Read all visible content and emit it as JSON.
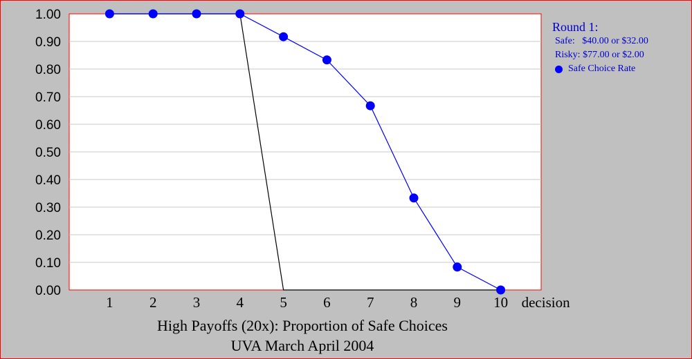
{
  "colors": {
    "background": "#c0c0c0",
    "plot_area": "#ffffff",
    "plot_border": "#ff0000",
    "series": "#0000ff",
    "reference_line": "#000000",
    "legend_text": "#0000cc"
  },
  "chart_data": {
    "type": "line",
    "title": "High Payoffs (20x): Proportion of Safe Choices",
    "subtitle": "UVA March April 2004",
    "xlabel": "decision",
    "ylabel": "",
    "xlim": [
      0,
      11
    ],
    "ylim": [
      0,
      1
    ],
    "grid": true,
    "legend_position": "right",
    "x": [
      1,
      2,
      3,
      4,
      5,
      6,
      7,
      8,
      9,
      10
    ],
    "x_tick_labels": [
      "1",
      "2",
      "3",
      "4",
      "5",
      "6",
      "7",
      "8",
      "9",
      "10"
    ],
    "y_tick_labels": [
      "0.00",
      "0.10",
      "0.20",
      "0.30",
      "0.40",
      "0.50",
      "0.60",
      "0.70",
      "0.80",
      "0.90",
      "1.00"
    ],
    "y_ticks": [
      0,
      0.1,
      0.2,
      0.3,
      0.4,
      0.5,
      0.6,
      0.7,
      0.8,
      0.9,
      1.0
    ],
    "series": [
      {
        "name": "Safe Choice Rate",
        "values": [
          1.0,
          1.0,
          1.0,
          1.0,
          0.917,
          0.833,
          0.667,
          0.333,
          0.083,
          0.0
        ],
        "color": "#0000ff",
        "marker": "circle"
      },
      {
        "values": [
          1.0,
          1.0,
          1.0,
          1.0,
          0.0,
          0.0,
          0.0,
          0.0,
          0.0,
          0.0
        ],
        "color": "#000000",
        "marker": "none"
      }
    ],
    "legend": {
      "round_label": "Round 1:",
      "safe_label": "Safe:   $40.00 or $32.00",
      "risky_label": "Risky: $77.00 or $2.00",
      "series_label": "Safe Choice Rate"
    }
  }
}
